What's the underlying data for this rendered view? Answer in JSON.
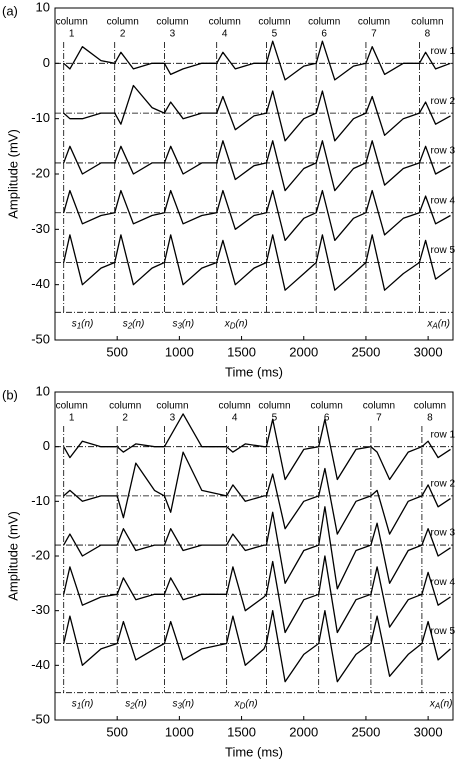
{
  "chart_data": [
    {
      "type": "line",
      "panel_label": "(a)",
      "x_label": "Time (ms)",
      "y_label": "Amplitude (mV)",
      "xlim": [
        0,
        3200
      ],
      "ylim": [
        -50,
        10
      ],
      "xticks": [
        500,
        1000,
        1500,
        2000,
        2500,
        3000
      ],
      "yticks": [
        -50,
        -40,
        -30,
        -20,
        -10,
        0,
        10
      ],
      "column_x": [
        70,
        480,
        880,
        1300,
        1700,
        2100,
        2500,
        2930
      ],
      "baselines": [
        0,
        -9,
        -18,
        -27,
        -36,
        -45
      ],
      "column_labels": [
        {
          "word": "column",
          "number": "1"
        },
        {
          "word": "column",
          "number": "2"
        },
        {
          "word": "column",
          "number": "3"
        },
        {
          "word": "column",
          "number": "4"
        },
        {
          "word": "column",
          "number": "5"
        },
        {
          "word": "column",
          "number": "6"
        },
        {
          "word": "column",
          "number": "7"
        },
        {
          "word": "column",
          "number": "8"
        }
      ],
      "signal_labels": [
        {
          "main": "s",
          "sub": "1",
          "tail": "(n)"
        },
        {
          "main": "s",
          "sub": "2",
          "tail": "(n)"
        },
        {
          "main": "s",
          "sub": "3",
          "tail": "(n)"
        },
        {
          "main": "x",
          "sub": "D",
          "tail": "(n)"
        },
        {
          "main": "x",
          "sub": "A",
          "tail": "(n)"
        }
      ],
      "x": [
        70,
        120,
        220,
        370,
        480,
        530,
        630,
        780,
        880,
        930,
        1030,
        1180,
        1300,
        1350,
        1450,
        1600,
        1700,
        1750,
        1850,
        2000,
        2100,
        2150,
        2250,
        2400,
        2500,
        2550,
        2650,
        2800,
        2930,
        2980,
        3060,
        3180
      ],
      "series": [
        {
          "name": "row 1",
          "color": "#000000",
          "values": [
            0,
            -1,
            3,
            0.5,
            0,
            2,
            -1,
            0,
            0,
            -2,
            -1,
            0,
            0,
            2,
            -1,
            0,
            0,
            4,
            -3,
            -0.5,
            0,
            4,
            -3,
            -0.5,
            0,
            3,
            -2,
            0,
            0,
            2,
            -1,
            0
          ]
        },
        {
          "name": "row 2",
          "color": "#000000",
          "values": [
            -9,
            -10,
            -10,
            -9,
            -9,
            -11,
            -4,
            -8,
            -9,
            -7,
            -10,
            -9,
            -9,
            -6,
            -12,
            -9.5,
            -9,
            -5,
            -14,
            -10,
            -9,
            -5,
            -14,
            -10,
            -9,
            -6,
            -13,
            -10,
            -9,
            -7,
            -11,
            -9.5
          ]
        },
        {
          "name": "row 3",
          "color": "#000000",
          "values": [
            -18,
            -15,
            -20,
            -18,
            -18,
            -15,
            -20,
            -18,
            -18,
            -15,
            -20,
            -18,
            -18,
            -14,
            -21,
            -18.5,
            -18,
            -14,
            -23,
            -19,
            -18,
            -14,
            -23,
            -19,
            -18,
            -14,
            -22,
            -19,
            -18,
            -15,
            -20,
            -18.5
          ]
        },
        {
          "name": "row 4",
          "color": "#000000",
          "values": [
            -27,
            -23,
            -29,
            -27.5,
            -27,
            -23,
            -29,
            -27.5,
            -27,
            -23,
            -29,
            -27.5,
            -27,
            -23,
            -30,
            -27.5,
            -27,
            -23,
            -32,
            -28,
            -27,
            -23,
            -32,
            -28,
            -27,
            -23,
            -31,
            -28,
            -27,
            -24,
            -29,
            -27.5
          ]
        },
        {
          "name": "row 5",
          "color": "#000000",
          "values": [
            -36,
            -31,
            -40,
            -37,
            -36,
            -31,
            -40,
            -37,
            -36,
            -31,
            -40,
            -37,
            -36,
            -32,
            -40,
            -37,
            -36,
            -31,
            -41,
            -38,
            -36,
            -31,
            -41,
            -38,
            -36,
            -31,
            -41,
            -38,
            -36,
            -32,
            -39,
            -37
          ]
        }
      ]
    },
    {
      "type": "line",
      "panel_label": "(b)",
      "x_label": "Time (ms)",
      "y_label": "Amplitude (mV)",
      "xlim": [
        0,
        3200
      ],
      "ylim": [
        -50,
        10
      ],
      "xticks": [
        500,
        1000,
        1500,
        2000,
        2500,
        3000
      ],
      "yticks": [
        -50,
        -40,
        -30,
        -20,
        -10,
        0,
        10
      ],
      "column_x": [
        70,
        500,
        880,
        1380,
        1700,
        2120,
        2540,
        2950
      ],
      "baselines": [
        0,
        -9,
        -18,
        -27,
        -36,
        -45
      ],
      "column_labels": [
        {
          "word": "column",
          "number": "1"
        },
        {
          "word": "column",
          "number": "2"
        },
        {
          "word": "column",
          "number": "3"
        },
        {
          "word": "column",
          "number": "4"
        },
        {
          "word": "column",
          "number": "5"
        },
        {
          "word": "column",
          "number": "6"
        },
        {
          "word": "column",
          "number": "7"
        },
        {
          "word": "column",
          "number": "8"
        }
      ],
      "signal_labels": [
        {
          "main": "s",
          "sub": "1",
          "tail": "(n)"
        },
        {
          "main": "s",
          "sub": "2",
          "tail": "(n)"
        },
        {
          "main": "s",
          "sub": "3",
          "tail": "(n)"
        },
        {
          "main": "x",
          "sub": "D",
          "tail": "(n)"
        },
        {
          "main": "x",
          "sub": "A",
          "tail": "(n)"
        }
      ],
      "x": [
        70,
        120,
        220,
        370,
        500,
        550,
        650,
        800,
        880,
        930,
        1030,
        1180,
        1380,
        1430,
        1530,
        1680,
        1700,
        1750,
        1850,
        2000,
        2120,
        2170,
        2270,
        2420,
        2540,
        2590,
        2690,
        2840,
        2950,
        3000,
        3080,
        3180
      ],
      "series": [
        {
          "name": "row 1",
          "color": "#000000",
          "values": [
            0,
            -2,
            1,
            0,
            0,
            -1,
            0.5,
            0,
            0,
            2,
            6,
            0,
            0,
            -1,
            0.5,
            0,
            0,
            5,
            -6,
            -0.5,
            0,
            5,
            -6,
            -0.5,
            0,
            -1,
            -6,
            -1,
            0,
            1,
            -2,
            -0.5
          ]
        },
        {
          "name": "row 2",
          "color": "#000000",
          "values": [
            -9,
            -8,
            -10,
            -9,
            -9,
            -13,
            -3,
            -8,
            -9,
            -12,
            -1,
            -8,
            -9,
            -7,
            -10,
            -9,
            -9,
            -5,
            -15,
            -10,
            -9,
            -4,
            -16,
            -10,
            -9,
            -8,
            -16,
            -10,
            -9,
            -7,
            -11,
            -9.5
          ]
        },
        {
          "name": "row 3",
          "color": "#000000",
          "values": [
            -18,
            -16,
            -20,
            -18,
            -18,
            -15,
            -19,
            -18,
            -18,
            -15,
            -19,
            -18,
            -18,
            -16,
            -19,
            -18,
            -18,
            -12,
            -25,
            -19,
            -18,
            -11,
            -26,
            -19,
            -18,
            -14,
            -25,
            -19,
            -18,
            -15,
            -20,
            -18.5
          ]
        },
        {
          "name": "row 4",
          "color": "#000000",
          "values": [
            -27,
            -22,
            -29,
            -27.5,
            -27,
            -24,
            -28,
            -27,
            -27,
            -24,
            -28,
            -27,
            -27,
            -22,
            -30,
            -27.5,
            -27,
            -21,
            -34,
            -28,
            -27,
            -20,
            -34,
            -28,
            -27,
            -22,
            -33,
            -28,
            -27,
            -23,
            -29,
            -27.5
          ]
        },
        {
          "name": "row 5",
          "color": "#000000",
          "values": [
            -36,
            -31,
            -40,
            -37,
            -36,
            -32,
            -39,
            -37,
            -36,
            -32,
            -39,
            -37,
            -36,
            -31,
            -40,
            -37,
            -36,
            -30,
            -43,
            -38,
            -36,
            -30,
            -43,
            -38,
            -36,
            -31,
            -42,
            -38,
            -36,
            -32,
            -39,
            -37
          ]
        }
      ]
    }
  ]
}
